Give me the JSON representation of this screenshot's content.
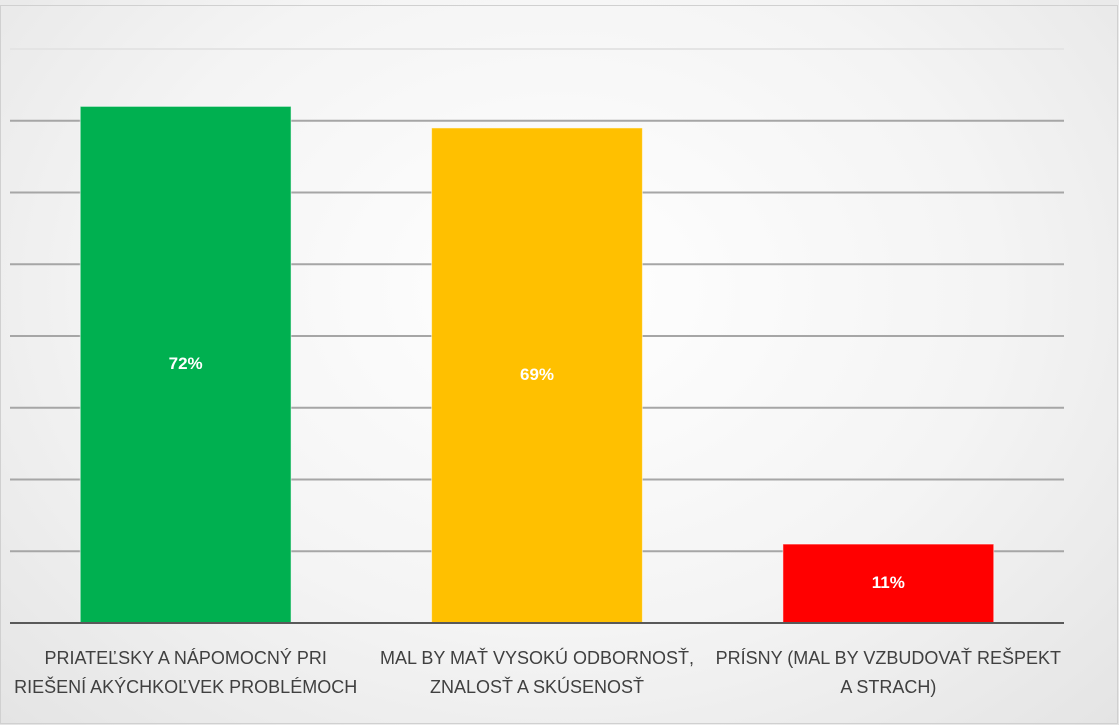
{
  "chart_data": {
    "type": "bar",
    "categories": [
      "PRIATEĽSKY A NÁPOMOCNÝ PRI RIEŠENÍ AKÝCHKOĽVEK PROBLÉMOCH",
      "MAL BY MAŤ VYSOKÚ ODBORNOSŤ, ZNALOSŤ A SKÚSENOSŤ",
      "PRÍSNY (MAL BY VZBUDOVAŤ REŠPEKT A STRACH)"
    ],
    "values": [
      72,
      69,
      11
    ],
    "value_labels": [
      "72%",
      "69%",
      "11%"
    ],
    "colors": [
      "#00b050",
      "#ffc000",
      "#ff0000"
    ],
    "ylim": [
      0,
      80
    ],
    "yticks": [
      0,
      10,
      20,
      30,
      40,
      50,
      60,
      70,
      80
    ],
    "grid": true
  }
}
